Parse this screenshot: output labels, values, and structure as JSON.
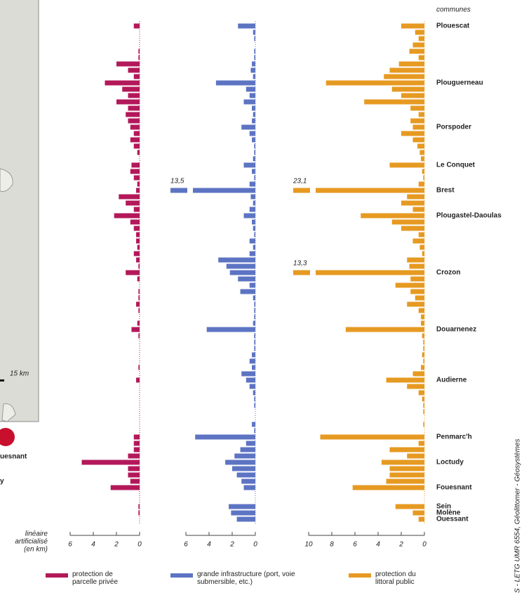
{
  "chart_data": {
    "type": "bar",
    "orientation": "horizontal",
    "categories_header": "communes",
    "categories": [
      "Plouescat",
      null,
      null,
      null,
      null,
      null,
      null,
      null,
      null,
      "Plouguerneau",
      null,
      null,
      null,
      null,
      null,
      null,
      "Porspoder",
      null,
      null,
      null,
      null,
      null,
      "Le Conquet",
      null,
      null,
      null,
      "Brest",
      null,
      null,
      null,
      "Plougastel-Daoulas",
      null,
      null,
      null,
      null,
      null,
      null,
      null,
      null,
      "Crozon",
      null,
      null,
      null,
      null,
      null,
      null,
      null,
      null,
      "Douarnenez",
      null,
      null,
      null,
      null,
      null,
      null,
      null,
      "Audierne",
      null,
      null,
      null,
      null,
      null,
      null,
      null,
      null,
      "Penmarc'h",
      null,
      null,
      null,
      "Loctudy",
      null,
      null,
      null,
      "Fouesnant",
      null,
      null,
      "Sein",
      "Molène",
      "Ouessant"
    ],
    "xlabel_lines": [
      "linéaire",
      "artificialisé",
      "(en km)"
    ],
    "series": [
      {
        "name": "protection de parcelle privée",
        "color": "#b3185a",
        "xlim": [
          6,
          0
        ],
        "xticks": [
          6,
          4,
          2,
          0
        ],
        "values": [
          0.5,
          0,
          0,
          0,
          0.1,
          0.1,
          2,
          1,
          0.5,
          3,
          1.5,
          1,
          2,
          1,
          1.2,
          1,
          0.8,
          0.5,
          0.8,
          0.5,
          0.2,
          0,
          0.7,
          0.8,
          0.5,
          0.2,
          0.3,
          1.8,
          1.2,
          0.5,
          2.2,
          0.8,
          0.5,
          0.3,
          0.3,
          0.2,
          0.5,
          0.3,
          0.1,
          1.2,
          0.2,
          0,
          0.1,
          0.1,
          0.3,
          0.1,
          0,
          0.2,
          0.7,
          0.1,
          0,
          0,
          0,
          0,
          0.1,
          0,
          0.3,
          0,
          0,
          0,
          0,
          0,
          0,
          0,
          0,
          0.5,
          0.5,
          0.5,
          1,
          5,
          1,
          1,
          0.8,
          2.5,
          null,
          null,
          0.1,
          0.1,
          0
        ]
      },
      {
        "name": "grande infrastructure (port, voie submersible, etc.)",
        "color": "#5d74c3",
        "xlim": [
          6,
          0
        ],
        "xticks": [
          6,
          4,
          2,
          0
        ],
        "values": [
          1.5,
          0.2,
          0.1,
          0,
          0.1,
          0.1,
          0.3,
          0.4,
          0.2,
          3.4,
          0.8,
          0.5,
          1,
          0.3,
          0.2,
          0.3,
          1.2,
          0.5,
          0.3,
          0.1,
          0.1,
          0.2,
          1,
          0.3,
          0.1,
          0.5,
          13.5,
          0.4,
          0.2,
          0.5,
          1,
          0.3,
          0.2,
          0.1,
          0.5,
          0.2,
          0.5,
          3.2,
          2.5,
          2.2,
          1.5,
          0.5,
          1.3,
          0.2,
          0.1,
          0.1,
          0.1,
          0.2,
          4.2,
          0.1,
          0.1,
          0.1,
          0.3,
          0.5,
          0.3,
          1.2,
          0.8,
          0.5,
          0.2,
          0.1,
          0.1,
          0,
          0,
          0.3,
          0.1,
          5.2,
          0.8,
          1.3,
          1.8,
          2.6,
          2,
          1.6,
          1.2,
          1,
          null,
          null,
          2.3,
          2.1,
          1.6
        ],
        "value_labels": [
          null,
          null,
          null,
          null,
          null,
          null,
          null,
          null,
          null,
          null,
          null,
          null,
          null,
          null,
          null,
          null,
          null,
          null,
          null,
          null,
          null,
          null,
          null,
          null,
          null,
          null,
          "13,5",
          null,
          null,
          null,
          null,
          null,
          null,
          null,
          null,
          null,
          null,
          null,
          null,
          null,
          null,
          null,
          null,
          null,
          null,
          null,
          null,
          null,
          null,
          null,
          null,
          null,
          null,
          null,
          null,
          null,
          null,
          null,
          null,
          null,
          null,
          null,
          null,
          null,
          null,
          null,
          null,
          null,
          null,
          null,
          null,
          null,
          null,
          null,
          null,
          null,
          null,
          null,
          null
        ]
      },
      {
        "name": "protection du littoral public",
        "color": "#e69a22",
        "xlim": [
          10,
          0
        ],
        "xticks": [
          10,
          8,
          6,
          4,
          2,
          0
        ],
        "values": [
          2,
          0.8,
          0.5,
          1,
          1.3,
          0.5,
          2.2,
          3,
          3.5,
          8.5,
          2.8,
          2,
          5.2,
          1.2,
          0.5,
          1.2,
          1,
          2,
          1,
          0.6,
          0.4,
          0.3,
          3,
          0.2,
          0.1,
          0.5,
          23.1,
          1.5,
          2,
          1,
          5.5,
          2.8,
          2,
          0.5,
          1,
          0.4,
          0.2,
          1.5,
          1.3,
          13.3,
          1.2,
          2.5,
          1.2,
          0.8,
          1.5,
          0.5,
          0.3,
          0.3,
          6.8,
          0.2,
          0.1,
          0.1,
          0.2,
          0.1,
          0.3,
          1,
          3.3,
          1.5,
          0.5,
          0.2,
          0.1,
          0.1,
          0,
          0.1,
          0,
          9,
          0.5,
          3,
          1.5,
          3.7,
          3,
          3,
          3.3,
          6.2,
          null,
          null,
          2.5,
          1,
          0.5
        ],
        "value_labels": [
          null,
          null,
          null,
          null,
          null,
          null,
          null,
          null,
          null,
          null,
          null,
          null,
          null,
          null,
          null,
          null,
          null,
          null,
          null,
          null,
          null,
          null,
          null,
          null,
          null,
          null,
          "23,1",
          null,
          null,
          null,
          null,
          null,
          null,
          null,
          null,
          null,
          null,
          null,
          null,
          "13,3",
          null,
          null,
          null,
          null,
          null,
          null,
          null,
          null,
          null,
          null,
          null,
          null,
          null,
          null,
          null,
          null,
          null,
          null,
          null,
          null,
          null,
          null,
          null,
          null,
          null,
          null,
          null,
          null,
          null,
          null,
          null,
          null,
          null,
          null,
          null,
          null,
          null,
          null,
          null
        ]
      }
    ]
  },
  "map": {
    "scale_label": "15 km",
    "place_1": "uesnant",
    "place_2": "y"
  },
  "credit": "S - LETG UMR 6554, Géolittomer - Géosystèmes"
}
